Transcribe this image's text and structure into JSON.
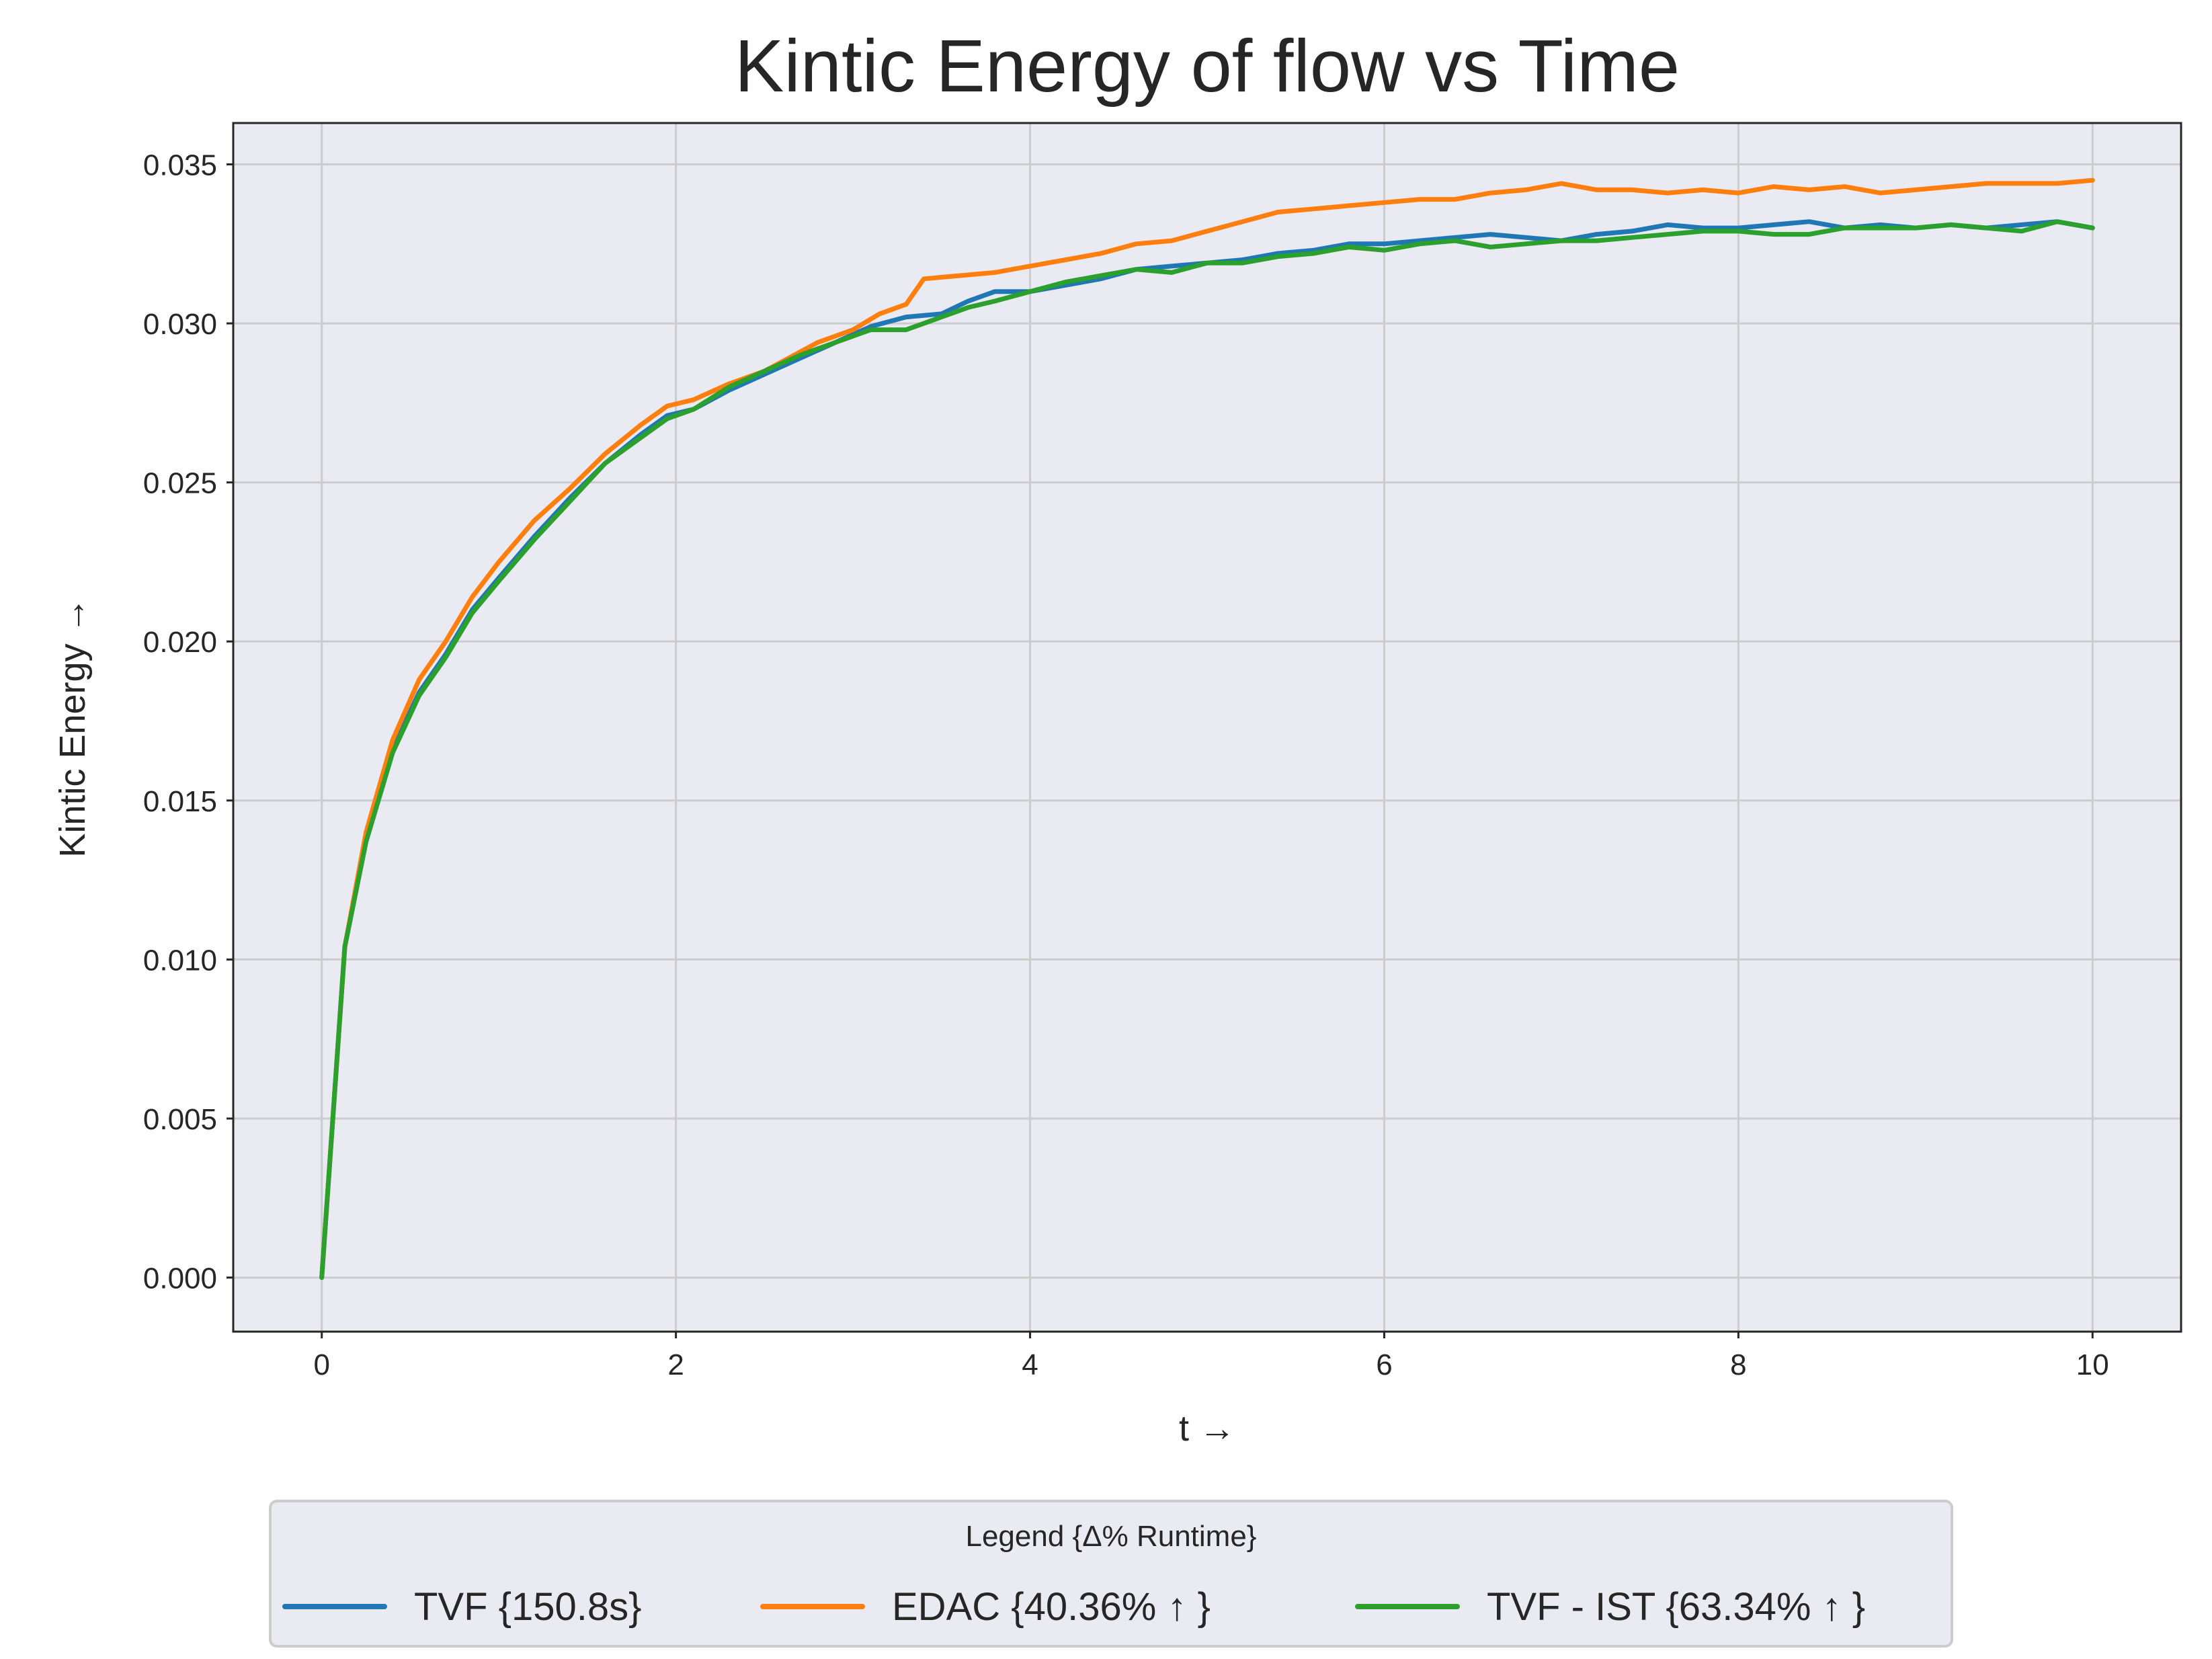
{
  "chart_data": {
    "type": "line",
    "title": "Kintic Energy of flow vs Time",
    "xlabel": "t →",
    "ylabel": "Kintic Energy →",
    "xlim": [
      -0.5,
      10.5
    ],
    "ylim": [
      -0.0017,
      0.0363
    ],
    "x_ticks": [
      0,
      2,
      4,
      6,
      8,
      10
    ],
    "x_tick_labels": [
      "0",
      "2",
      "4",
      "6",
      "8",
      "10"
    ],
    "y_ticks": [
      0.0,
      0.005,
      0.01,
      0.015,
      0.02,
      0.025,
      0.03,
      0.035
    ],
    "y_tick_labels": [
      "0.000",
      "0.005",
      "0.010",
      "0.015",
      "0.020",
      "0.025",
      "0.030",
      "0.035"
    ],
    "grid": true,
    "plot_background": "#eaeaf2",
    "grid_color": "#cccccc",
    "legend": {
      "title": "Legend {Δ% Runtime}",
      "placement": "below plot, centered, 3 columns"
    },
    "series": [
      {
        "name": "TVF {150.8s}",
        "color": "#1f77b4",
        "x": [
          0,
          0.13,
          0.25,
          0.4,
          0.55,
          0.7,
          0.85,
          1.0,
          1.2,
          1.4,
          1.6,
          1.8,
          1.95,
          2.1,
          2.3,
          2.5,
          2.7,
          2.9,
          3.1,
          3.3,
          3.5,
          3.65,
          3.8,
          4.0,
          4.2,
          4.4,
          4.6,
          4.8,
          5.0,
          5.2,
          5.4,
          5.6,
          5.8,
          6.0,
          6.2,
          6.4,
          6.6,
          6.8,
          7.0,
          7.2,
          7.4,
          7.6,
          7.8,
          8.0,
          8.2,
          8.4,
          8.6,
          8.8,
          9.0,
          9.2,
          9.4,
          9.6,
          9.8,
          10.0
        ],
        "values": [
          0.0,
          0.0104,
          0.0138,
          0.0166,
          0.0184,
          0.0196,
          0.021,
          0.022,
          0.0233,
          0.0245,
          0.0256,
          0.0265,
          0.0271,
          0.0273,
          0.0279,
          0.0284,
          0.0289,
          0.0294,
          0.0299,
          0.0302,
          0.0303,
          0.0307,
          0.031,
          0.031,
          0.0312,
          0.0314,
          0.0317,
          0.0318,
          0.0319,
          0.032,
          0.0322,
          0.0323,
          0.0325,
          0.0325,
          0.0326,
          0.0327,
          0.0328,
          0.0327,
          0.0326,
          0.0328,
          0.0329,
          0.0331,
          0.033,
          0.033,
          0.0331,
          0.0332,
          0.033,
          0.0331,
          0.033,
          0.0331,
          0.033,
          0.0331,
          0.0332,
          0.033
        ]
      },
      {
        "name": "EDAC {40.36% ↑ }",
        "color": "#ff7f0e",
        "x": [
          0,
          0.13,
          0.25,
          0.4,
          0.55,
          0.7,
          0.85,
          1.0,
          1.2,
          1.4,
          1.6,
          1.8,
          1.95,
          2.1,
          2.3,
          2.5,
          2.6,
          2.8,
          3.0,
          3.15,
          3.3,
          3.4,
          3.6,
          3.8,
          4.0,
          4.2,
          4.4,
          4.6,
          4.8,
          5.0,
          5.2,
          5.4,
          5.6,
          5.8,
          6.0,
          6.2,
          6.4,
          6.6,
          6.8,
          7.0,
          7.2,
          7.4,
          7.6,
          7.8,
          8.0,
          8.2,
          8.4,
          8.6,
          8.8,
          9.0,
          9.2,
          9.4,
          9.6,
          9.8,
          10.0
        ],
        "values": [
          0.0,
          0.0104,
          0.014,
          0.0169,
          0.0188,
          0.02,
          0.0214,
          0.0225,
          0.0238,
          0.0248,
          0.0259,
          0.0268,
          0.0274,
          0.0276,
          0.0281,
          0.0285,
          0.0288,
          0.0294,
          0.0298,
          0.0303,
          0.0306,
          0.0314,
          0.0315,
          0.0316,
          0.0318,
          0.032,
          0.0322,
          0.0325,
          0.0326,
          0.0329,
          0.0332,
          0.0335,
          0.0336,
          0.0337,
          0.0338,
          0.0339,
          0.0339,
          0.0341,
          0.0342,
          0.0344,
          0.0342,
          0.0342,
          0.0341,
          0.0342,
          0.0341,
          0.0343,
          0.0342,
          0.0343,
          0.0341,
          0.0342,
          0.0343,
          0.0344,
          0.0344,
          0.0344,
          0.0345
        ]
      },
      {
        "name": "TVF - IST {63.34% ↑ }",
        "color": "#2ca02c",
        "x": [
          0,
          0.13,
          0.25,
          0.4,
          0.55,
          0.7,
          0.85,
          1.0,
          1.2,
          1.4,
          1.6,
          1.8,
          1.95,
          2.1,
          2.3,
          2.5,
          2.7,
          2.9,
          3.1,
          3.3,
          3.5,
          3.65,
          3.8,
          4.0,
          4.2,
          4.4,
          4.6,
          4.8,
          5.0,
          5.2,
          5.4,
          5.6,
          5.8,
          6.0,
          6.2,
          6.4,
          6.6,
          6.8,
          7.0,
          7.2,
          7.4,
          7.6,
          7.8,
          8.0,
          8.2,
          8.4,
          8.6,
          8.8,
          9.0,
          9.2,
          9.4,
          9.6,
          9.8,
          10.0
        ],
        "values": [
          0.0,
          0.0104,
          0.0137,
          0.0165,
          0.0183,
          0.0195,
          0.0209,
          0.0219,
          0.0232,
          0.0244,
          0.0256,
          0.0264,
          0.027,
          0.0273,
          0.028,
          0.0285,
          0.029,
          0.0294,
          0.0298,
          0.0298,
          0.0302,
          0.0305,
          0.0307,
          0.031,
          0.0313,
          0.0315,
          0.0317,
          0.0316,
          0.0319,
          0.0319,
          0.0321,
          0.0322,
          0.0324,
          0.0323,
          0.0325,
          0.0326,
          0.0324,
          0.0325,
          0.0326,
          0.0326,
          0.0327,
          0.0328,
          0.0329,
          0.0329,
          0.0328,
          0.0328,
          0.033,
          0.033,
          0.033,
          0.0331,
          0.033,
          0.0329,
          0.0332,
          0.033
        ]
      }
    ]
  }
}
